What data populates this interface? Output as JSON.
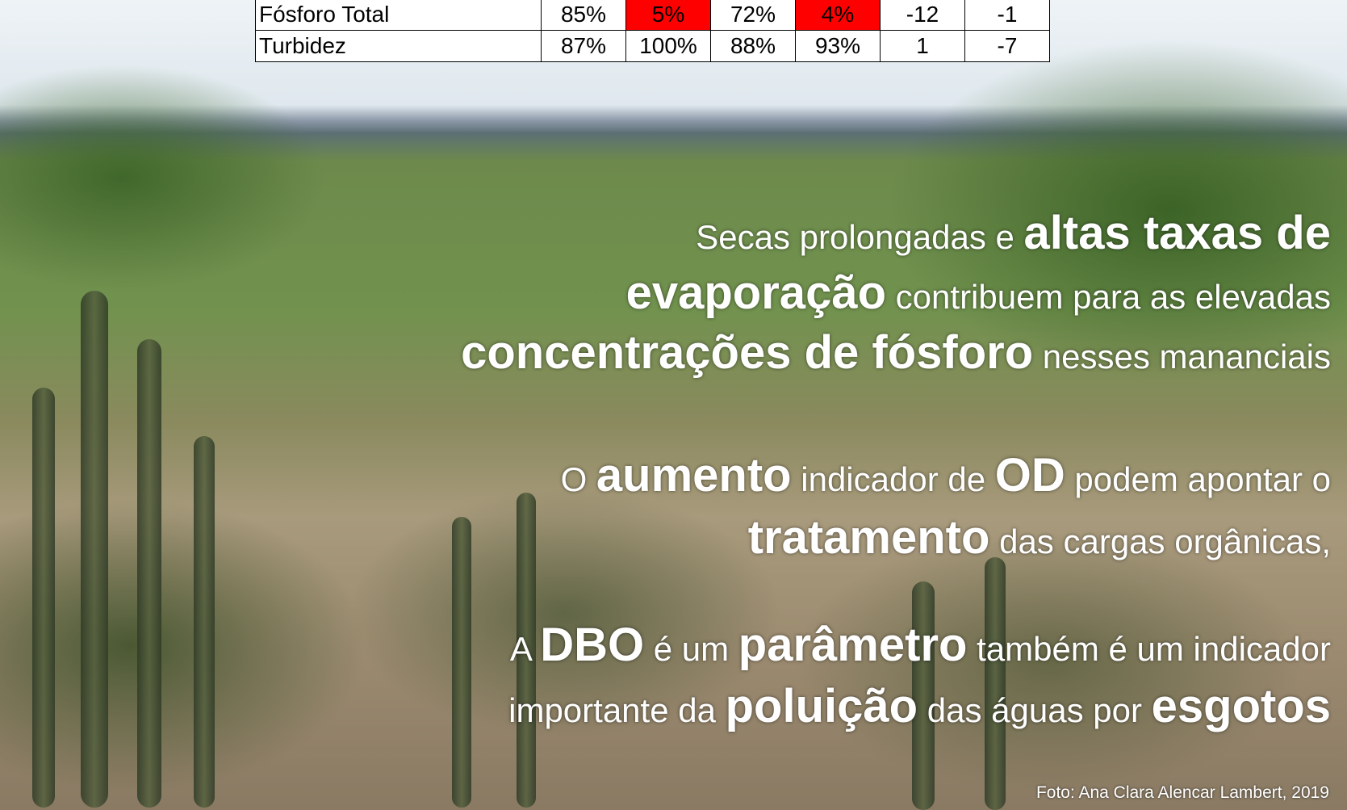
{
  "table": {
    "rows": [
      [
        "Fósforo Total",
        "85%",
        "5%",
        "72%",
        "4%",
        "-12",
        "-1"
      ],
      [
        "Turbidez",
        "87%",
        "100%",
        "88%",
        "93%",
        "1",
        "-7"
      ]
    ]
  },
  "paragraphs": [
    [
      [
        "Secas prolongadas e ",
        "altas taxas de"
      ],
      [
        "evaporação",
        " contribuem para as elevadas"
      ],
      [
        "concentrações de fósforo",
        " nesses mananciais"
      ]
    ],
    [
      [
        "O ",
        "aumento",
        " indicador de ",
        "OD",
        " podem apontar o"
      ],
      [
        "tratamento",
        " das cargas orgânicas,"
      ]
    ],
    [
      [
        "A ",
        "DBO",
        " é um ",
        "parâmetro",
        " também é um indicador"
      ],
      [
        "importante da ",
        "poluição",
        " das águas por ",
        "esgotos"
      ]
    ]
  ],
  "credit": "Foto: Ana Clara Alencar Lambert, 2019"
}
